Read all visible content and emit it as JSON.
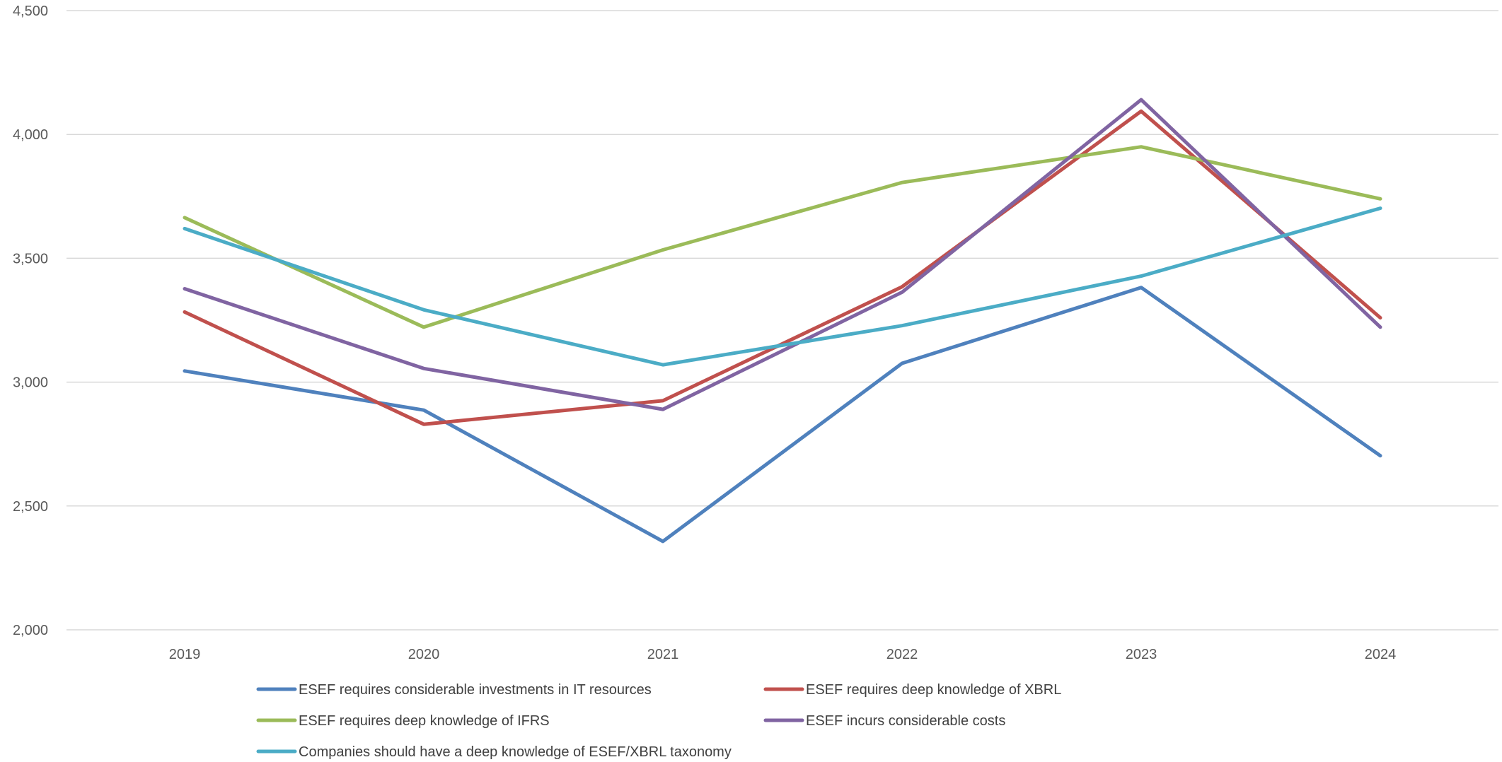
{
  "chart_data": {
    "type": "line",
    "title": "",
    "xlabel": "",
    "ylabel": "",
    "categories": [
      "2019",
      "2020",
      "2021",
      "2022",
      "2023",
      "2024"
    ],
    "ylim": [
      2000,
      4500
    ],
    "yticks": [
      2000,
      2500,
      3000,
      3500,
      4000,
      4500
    ],
    "ytick_labels": [
      "2,000",
      "2,500",
      "3,000",
      "3,500",
      "4,000",
      "4,500"
    ],
    "grid": "horizontal",
    "legend_position": "bottom",
    "series": [
      {
        "name": "ESEF requires considerable investments in IT resources",
        "color": "#4F81BD",
        "values": [
          3.045,
          2.887,
          2.357,
          3.076,
          3.382,
          2.703
        ]
      },
      {
        "name": "ESEF requires deep knowledge of XBRL",
        "color": "#C0504D",
        "values": [
          3.283,
          2.83,
          2.925,
          3.385,
          4.094,
          3.26
        ]
      },
      {
        "name": "ESEF requires deep knowledge of IFRS",
        "color": "#9BBB59",
        "values": [
          3.664,
          3.222,
          3.534,
          3.806,
          3.95,
          3.74
        ]
      },
      {
        "name": "ESEF incurs considerable costs",
        "color": "#8064A2",
        "values": [
          3.377,
          3.055,
          2.89,
          3.363,
          4.14,
          3.222
        ]
      },
      {
        "name": "Companies should have a deep knowledge of ESEF/XBRL taxonomy",
        "color": "#4BACC6",
        "values": [
          3.62,
          3.292,
          3.07,
          3.228,
          3.428,
          3.702
        ]
      }
    ]
  }
}
